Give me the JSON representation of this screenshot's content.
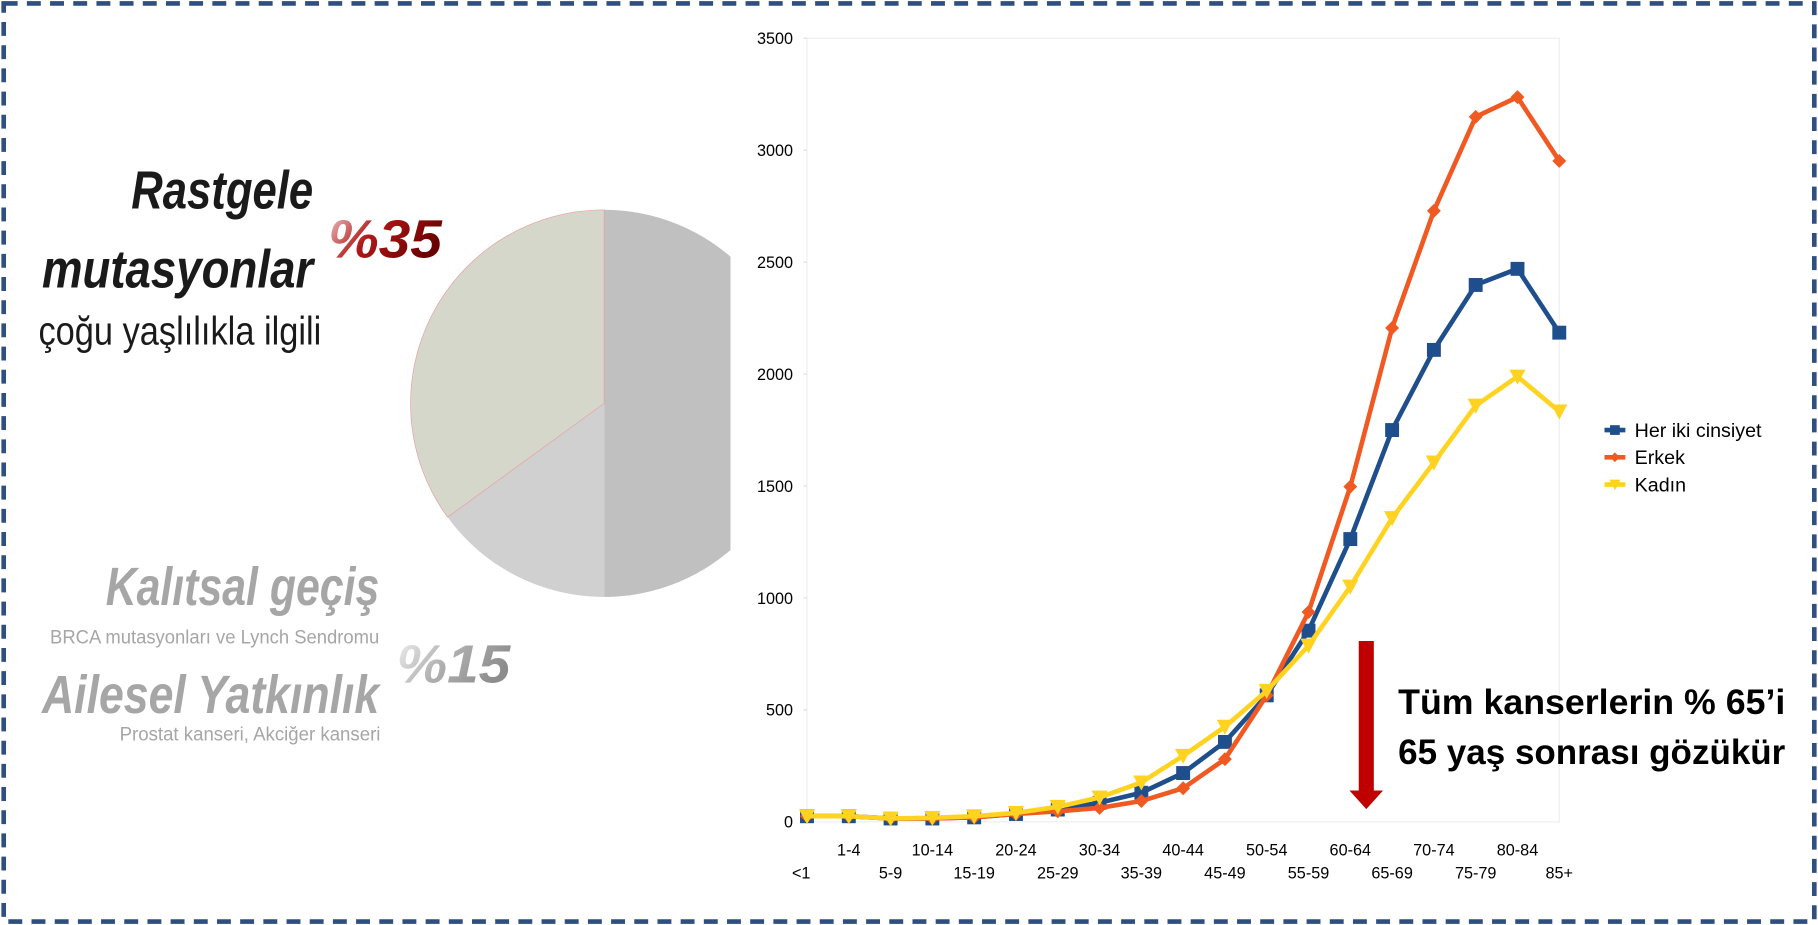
{
  "chart_data": [
    {
      "type": "pie",
      "values": [
        50,
        15,
        35
      ],
      "value_labels": [
        null,
        "%15",
        "%35"
      ],
      "colors": [
        "#c0c0c0",
        "#d0d0d0",
        "#d6d7cb"
      ],
      "annotations": [
        "Rastgele",
        "mutasyonlar",
        "çoğu yaşlılıkla ilgili",
        "Kalıtsal geçiş",
        "BRCA mutasyonları ve Lynch Sendromu",
        "Ailesel Yatkınlık",
        "Prostat kanseri, Akciğer kanseri"
      ]
    },
    {
      "type": "line",
      "categories": [
        "<1",
        "1-4",
        "5-9",
        "10-14",
        "15-19",
        "20-24",
        "25-29",
        "30-34",
        "35-39",
        "40-44",
        "45-49",
        "50-54",
        "55-59",
        "60-64",
        "65-69",
        "70-74",
        "75-79",
        "80-84",
        "85+"
      ],
      "series": [
        {
          "name": "Her iki cinsiyet",
          "color": "#1f4e8c",
          "marker": "square",
          "values": [
            25,
            25,
            15,
            15,
            20,
            35,
            55,
            85,
            130,
            218,
            357,
            565,
            854,
            1263,
            1750,
            2108,
            2398,
            2470,
            2185
          ]
        },
        {
          "name": "Erkek",
          "color": "#f05a22",
          "marker": "diamond",
          "values": [
            25,
            25,
            15,
            15,
            20,
            35,
            47,
            62,
            93,
            150,
            280,
            565,
            937,
            1497,
            2206,
            2729,
            3149,
            3237,
            2952
          ]
        },
        {
          "name": "Kadın",
          "color": "#ffd320",
          "marker": "triangle",
          "values": [
            25,
            25,
            15,
            18,
            25,
            40,
            67,
            109,
            176,
            295,
            425,
            585,
            787,
            1051,
            1357,
            1605,
            1859,
            1989,
            1833
          ]
        }
      ],
      "ylim": [
        0,
        3500
      ],
      "yticks": [
        0,
        500,
        1000,
        1500,
        2000,
        2500,
        3000,
        3500
      ],
      "grid": false,
      "legend": "right",
      "annotations": [
        "Tüm kanserlerin % 65’i",
        "65 yaş sonrası gözükür"
      ]
    }
  ]
}
